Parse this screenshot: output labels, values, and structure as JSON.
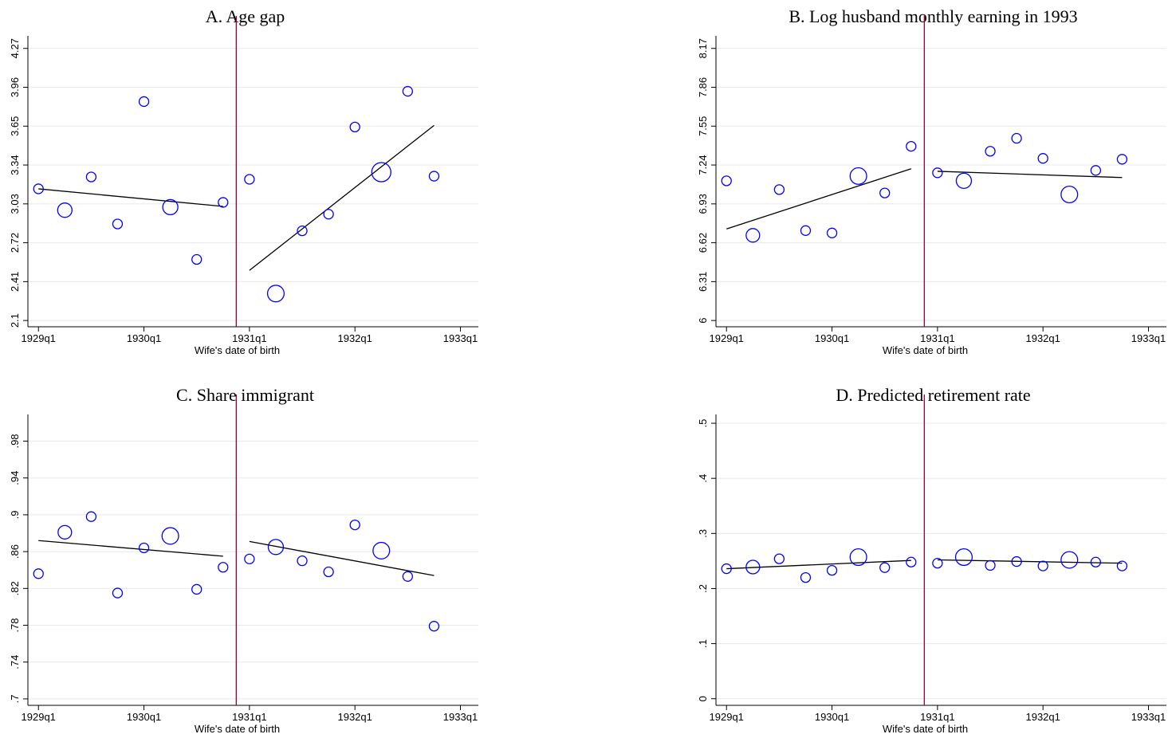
{
  "chart_data": [
    {
      "type": "scatter",
      "title": "A. Age gap",
      "x_label": "Wife's date of birth",
      "color": "#0000ff",
      "fit_color": "#000000",
      "cutoff_color": "#990033",
      "grid": true,
      "x": [
        1929,
        1929.25,
        1929.5,
        1929.75,
        1930,
        1930.25,
        1930.5,
        1930.75,
        1931,
        1931.25,
        1931.5,
        1931.75,
        1932,
        1932.25,
        1932.5,
        1932.75
      ],
      "values": [
        3.15,
        2.98,
        3.245,
        2.87,
        3.846,
        3.004,
        2.587,
        3.042,
        3.226,
        2.315,
        2.815,
        2.948,
        3.643,
        3.283,
        3.928,
        3.251
      ],
      "sizes": [
        1,
        2.25,
        1,
        1,
        1,
        2.5,
        1,
        1,
        1,
        3,
        1,
        1,
        1,
        4,
        1,
        1
      ],
      "fit_lines": [
        {
          "x": [
            1929,
            1930.75
          ],
          "y": [
            3.15,
            3.01
          ]
        },
        {
          "x": [
            1931,
            1932.75
          ],
          "y": [
            2.5,
            3.656
          ]
        }
      ],
      "cutoff": 1930.875,
      "xlim": [
        1928.9,
        1933.17
      ],
      "xticks": [
        {
          "value": 1929,
          "label": "1929q1"
        },
        {
          "value": 1930,
          "label": "1930q1"
        },
        {
          "value": 1931,
          "label": "1931q1"
        },
        {
          "value": 1932,
          "label": "1932q1"
        },
        {
          "value": 1933,
          "label": "1933q1"
        }
      ],
      "ylim": [
        2.05,
        4.37
      ],
      "yticks": [
        2.1,
        2.41,
        2.72,
        3.03,
        3.34,
        3.65,
        3.96,
        4.27
      ]
    },
    {
      "type": "scatter",
      "title": "B. Log husband monthly earning in 1993",
      "x_label": "Wife's date of birth",
      "color": "#0000ff",
      "fit_color": "#000000",
      "cutoff_color": "#990033",
      "grid": true,
      "x": [
        1929,
        1929.25,
        1929.5,
        1929.75,
        1930,
        1930.25,
        1930.5,
        1930.75,
        1931,
        1931.25,
        1931.5,
        1931.75,
        1932,
        1932.25,
        1932.5,
        1932.75
      ],
      "values": [
        7.114,
        6.679,
        7.044,
        6.717,
        6.698,
        7.152,
        7.017,
        7.389,
        7.178,
        7.114,
        7.35,
        7.453,
        7.293,
        7.005,
        7.197,
        7.286
      ],
      "sizes": [
        1,
        2,
        1,
        1,
        1,
        3,
        1,
        1,
        1,
        2.5,
        1,
        1,
        1,
        3,
        1,
        1
      ],
      "fit_lines": [
        {
          "x": [
            1929,
            1930.75
          ],
          "y": [
            6.73,
            7.21
          ]
        },
        {
          "x": [
            1931,
            1932.75
          ],
          "y": [
            7.19,
            7.14
          ]
        }
      ],
      "cutoff": 1930.875,
      "xlim": [
        1928.9,
        1933.17
      ],
      "xticks": [
        {
          "value": 1929,
          "label": "1929q1"
        },
        {
          "value": 1930,
          "label": "1930q1"
        },
        {
          "value": 1931,
          "label": "1931q1"
        },
        {
          "value": 1932,
          "label": "1932q1"
        },
        {
          "value": 1933,
          "label": "1933q1"
        }
      ],
      "ylim": [
        5.95,
        8.27
      ],
      "yticks": [
        6,
        6.31,
        6.62,
        6.93,
        7.24,
        7.55,
        7.86,
        8.17
      ]
    },
    {
      "type": "scatter",
      "title": "C. Share immigrant",
      "x_label": "Wife's date of birth",
      "color": "#0000ff",
      "fit_color": "#000000",
      "cutoff_color": "#990033",
      "grid": true,
      "x": [
        1929,
        1929.25,
        1929.5,
        1929.75,
        1930,
        1930.25,
        1930.5,
        1930.75,
        1931,
        1931.25,
        1931.5,
        1931.75,
        1932,
        1932.25,
        1932.5,
        1932.75
      ],
      "values": [
        0.836,
        0.881,
        0.898,
        0.815,
        0.864,
        0.877,
        0.819,
        0.843,
        0.852,
        0.865,
        0.85,
        0.838,
        0.889,
        0.861,
        0.833,
        0.779
      ],
      "sizes": [
        1,
        2,
        1,
        1,
        1,
        3,
        1,
        1,
        1,
        2.5,
        1,
        1,
        1,
        3,
        1,
        1
      ],
      "fit_lines": [
        {
          "x": [
            1929,
            1930.75
          ],
          "y": [
            0.872,
            0.855
          ]
        },
        {
          "x": [
            1931,
            1932.75
          ],
          "y": [
            0.871,
            0.834
          ]
        }
      ],
      "cutoff": 1930.875,
      "xlim": [
        1928.9,
        1933.17
      ],
      "xticks": [
        {
          "value": 1929,
          "label": "1929q1"
        },
        {
          "value": 1930,
          "label": "1930q1"
        },
        {
          "value": 1931,
          "label": "1931q1"
        },
        {
          "value": 1932,
          "label": "1932q1"
        },
        {
          "value": 1933,
          "label": "1933q1"
        }
      ],
      "ylim": [
        0.693,
        1.009
      ],
      "yticks": [
        {
          "value": 0.7,
          "label": ".7"
        },
        {
          "value": 0.74,
          "label": ".74"
        },
        {
          "value": 0.78,
          "label": ".78"
        },
        {
          "value": 0.82,
          "label": ".82"
        },
        {
          "value": 0.86,
          "label": ".86"
        },
        {
          "value": 0.9,
          "label": ".9"
        },
        {
          "value": 0.94,
          "label": ".94"
        },
        {
          "value": 0.98,
          "label": ".98"
        }
      ]
    },
    {
      "type": "scatter",
      "title": "D. Predicted retirement rate",
      "x_label": "Wife's date of birth",
      "color": "#0000ff",
      "fit_color": "#000000",
      "cutoff_color": "#990033",
      "grid": true,
      "x": [
        1929,
        1929.25,
        1929.5,
        1929.75,
        1930,
        1930.25,
        1930.5,
        1930.75,
        1931,
        1931.25,
        1931.5,
        1931.75,
        1932,
        1932.25,
        1932.5,
        1932.75
      ],
      "values": [
        0.236,
        0.239,
        0.254,
        0.22,
        0.233,
        0.257,
        0.238,
        0.248,
        0.246,
        0.257,
        0.242,
        0.249,
        0.241,
        0.252,
        0.248,
        0.241
      ],
      "sizes": [
        1,
        2,
        1,
        1,
        1,
        3,
        1,
        1,
        1,
        3,
        1,
        1,
        1,
        3,
        1,
        1
      ],
      "fit_lines": [
        {
          "x": [
            1929,
            1930.75
          ],
          "y": [
            0.236,
            0.251
          ]
        },
        {
          "x": [
            1931,
            1932.75
          ],
          "y": [
            0.252,
            0.246
          ]
        }
      ],
      "cutoff": 1930.875,
      "xlim": [
        1928.9,
        1933.17
      ],
      "xticks": [
        {
          "value": 1929,
          "label": "1929q1"
        },
        {
          "value": 1930,
          "label": "1930q1"
        },
        {
          "value": 1931,
          "label": "1931q1"
        },
        {
          "value": 1932,
          "label": "1932q1"
        },
        {
          "value": 1933,
          "label": "1933q1"
        }
      ],
      "ylim": [
        -0.012,
        0.516
      ],
      "yticks": [
        0,
        {
          "value": 0.1,
          "label": ".1"
        },
        {
          "value": 0.2,
          "label": ".2"
        },
        {
          "value": 0.3,
          "label": ".3"
        },
        {
          "value": 0.4,
          "label": ".4"
        },
        {
          "value": 0.5,
          "label": ".5"
        }
      ]
    }
  ]
}
